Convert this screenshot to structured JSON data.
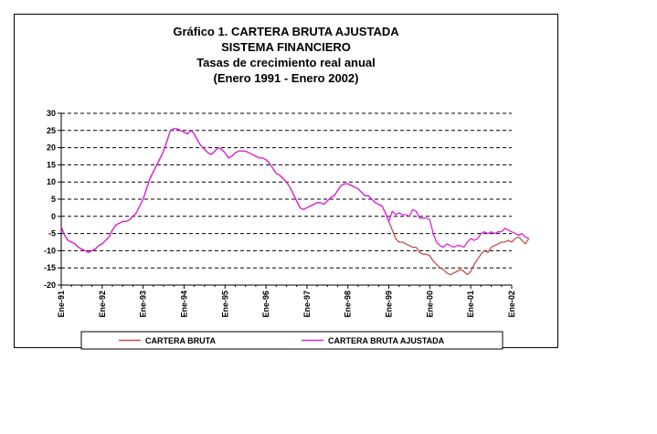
{
  "titles": {
    "line1": "Gráfico 1. CARTERA BRUTA AJUSTADA",
    "line2": "SISTEMA FINANCIERO",
    "line3": "Tasas de crecimiento real anual",
    "line4": "(Enero 1991 - Enero 2002)"
  },
  "colors": {
    "cartera_bruta": "#c0504d",
    "cartera_ajustada": "#e020e0",
    "grid": "#000000"
  },
  "chart_data": {
    "type": "line",
    "title": "Gráfico 1. CARTERA BRUTA AJUSTADA",
    "xlabel": "",
    "ylabel": "",
    "ylim": [
      -20,
      30
    ],
    "yticks": [
      30,
      25,
      20,
      15,
      10,
      5,
      0,
      -5,
      -10,
      -15,
      -20
    ],
    "grid": "horizontal dashed",
    "legend_position": "bottom",
    "x_start": "Ene-91",
    "x_end": "Ene-02",
    "x_ticks": [
      {
        "month": 0,
        "label": "Ene-91"
      },
      {
        "month": 12,
        "label": "Ene-92"
      },
      {
        "month": 24,
        "label": "Ene-93"
      },
      {
        "month": 36,
        "label": "Ene-94"
      },
      {
        "month": 48,
        "label": "Ene-95"
      },
      {
        "month": 60,
        "label": "Ene-96"
      },
      {
        "month": 72,
        "label": "Ene-97"
      },
      {
        "month": 84,
        "label": "Ene-98"
      },
      {
        "month": 96,
        "label": "Ene-99"
      },
      {
        "month": 108,
        "label": "Ene-00"
      },
      {
        "month": 120,
        "label": "Ene-01"
      },
      {
        "month": 132,
        "label": "Ene-02"
      }
    ],
    "series": [
      {
        "name": "CARTERA BRUTA",
        "color": "#c0504d",
        "points": [
          [
            0,
            -3
          ],
          [
            1,
            -5.5
          ],
          [
            2,
            -7
          ],
          [
            3,
            -7.5
          ],
          [
            4,
            -8
          ],
          [
            5,
            -9
          ],
          [
            6,
            -9.5
          ],
          [
            7,
            -10
          ],
          [
            8,
            -10.5
          ],
          [
            9,
            -10
          ],
          [
            10,
            -9.5
          ],
          [
            11,
            -8.5
          ],
          [
            12,
            -8
          ],
          [
            13,
            -7
          ],
          [
            14,
            -6
          ],
          [
            15,
            -4
          ],
          [
            16,
            -2.5
          ],
          [
            17,
            -2
          ],
          [
            18,
            -1.5
          ],
          [
            19,
            -1.5
          ],
          [
            20,
            -1
          ],
          [
            21,
            0
          ],
          [
            22,
            1
          ],
          [
            23,
            3
          ],
          [
            24,
            5
          ],
          [
            25,
            8
          ],
          [
            26,
            11
          ],
          [
            27,
            13
          ],
          [
            28,
            15
          ],
          [
            29,
            17
          ],
          [
            30,
            19
          ],
          [
            31,
            22
          ],
          [
            32,
            25
          ],
          [
            33,
            25.5
          ],
          [
            34,
            25.5
          ],
          [
            35,
            25
          ],
          [
            36,
            24.5
          ],
          [
            37,
            24
          ],
          [
            38,
            25
          ],
          [
            39,
            24
          ],
          [
            40,
            22
          ],
          [
            41,
            20.5
          ],
          [
            42,
            19.5
          ],
          [
            43,
            18.5
          ],
          [
            44,
            18
          ],
          [
            45,
            19
          ],
          [
            46,
            20
          ],
          [
            47,
            19.5
          ],
          [
            48,
            18.5
          ],
          [
            49,
            17
          ],
          [
            50,
            17.5
          ],
          [
            51,
            18.5
          ],
          [
            52,
            19
          ],
          [
            53,
            19
          ],
          [
            54,
            19
          ],
          [
            55,
            18.5
          ],
          [
            56,
            18
          ],
          [
            57,
            17.5
          ],
          [
            58,
            17
          ],
          [
            59,
            17
          ],
          [
            60,
            16.5
          ],
          [
            61,
            15.5
          ],
          [
            62,
            14
          ],
          [
            63,
            12.5
          ],
          [
            64,
            12
          ],
          [
            65,
            11
          ],
          [
            66,
            10
          ],
          [
            67,
            8.5
          ],
          [
            68,
            6.5
          ],
          [
            69,
            4.5
          ],
          [
            70,
            2.5
          ],
          [
            71,
            2
          ],
          [
            72,
            2.5
          ],
          [
            73,
            3
          ],
          [
            74,
            3.5
          ],
          [
            75,
            4
          ],
          [
            76,
            4
          ],
          [
            77,
            3.5
          ],
          [
            78,
            4.5
          ],
          [
            79,
            5.5
          ],
          [
            80,
            6
          ],
          [
            81,
            7.5
          ],
          [
            82,
            9
          ],
          [
            83,
            9.5
          ],
          [
            84,
            9.5
          ],
          [
            85,
            9
          ],
          [
            86,
            8.5
          ],
          [
            87,
            8
          ],
          [
            88,
            7
          ],
          [
            89,
            6
          ],
          [
            90,
            6
          ],
          [
            91,
            5
          ],
          [
            92,
            4
          ],
          [
            93,
            3.5
          ],
          [
            94,
            3
          ],
          [
            95,
            1
          ],
          [
            96,
            -1.5
          ],
          [
            97,
            -4
          ],
          [
            98,
            -6.5
          ],
          [
            99,
            -7.5
          ],
          [
            100,
            -7.5
          ],
          [
            101,
            -8
          ],
          [
            102,
            -8.5
          ],
          [
            103,
            -9
          ],
          [
            104,
            -9
          ],
          [
            105,
            -10.5
          ],
          [
            106,
            -11
          ],
          [
            107,
            -11
          ],
          [
            108,
            -11.5
          ],
          [
            109,
            -13
          ],
          [
            110,
            -14
          ],
          [
            111,
            -15
          ],
          [
            112,
            -15.5
          ],
          [
            113,
            -16.5
          ],
          [
            114,
            -17
          ],
          [
            115,
            -16.5
          ],
          [
            116,
            -16
          ],
          [
            117,
            -15.5
          ],
          [
            118,
            -16
          ],
          [
            119,
            -17
          ],
          [
            120,
            -16
          ],
          [
            121,
            -14
          ],
          [
            122,
            -12.5
          ],
          [
            123,
            -11
          ],
          [
            124,
            -10
          ],
          [
            125,
            -10.5
          ],
          [
            126,
            -9
          ],
          [
            127,
            -8.5
          ],
          [
            128,
            -8
          ],
          [
            129,
            -7.5
          ],
          [
            130,
            -7.5
          ],
          [
            131,
            -7
          ],
          [
            132,
            -7.5
          ],
          [
            133,
            -6.5
          ],
          [
            134,
            -6
          ],
          [
            135,
            -7
          ],
          [
            136,
            -8
          ],
          [
            137,
            -6.5
          ]
        ]
      },
      {
        "name": "CARTERA BRUTA AJUSTADA",
        "color": "#e020e0",
        "points": [
          [
            0,
            -3
          ],
          [
            1,
            -5.5
          ],
          [
            2,
            -7
          ],
          [
            3,
            -7.5
          ],
          [
            4,
            -8
          ],
          [
            5,
            -9
          ],
          [
            6,
            -9.5
          ],
          [
            7,
            -10
          ],
          [
            8,
            -10.5
          ],
          [
            9,
            -10
          ],
          [
            10,
            -9.5
          ],
          [
            11,
            -8.5
          ],
          [
            12,
            -8
          ],
          [
            13,
            -7
          ],
          [
            14,
            -6
          ],
          [
            15,
            -4
          ],
          [
            16,
            -2.5
          ],
          [
            17,
            -2
          ],
          [
            18,
            -1.5
          ],
          [
            19,
            -1.5
          ],
          [
            20,
            -1
          ],
          [
            21,
            0
          ],
          [
            22,
            1
          ],
          [
            23,
            3
          ],
          [
            24,
            5
          ],
          [
            25,
            8
          ],
          [
            26,
            11
          ],
          [
            27,
            13
          ],
          [
            28,
            15
          ],
          [
            29,
            17
          ],
          [
            30,
            19
          ],
          [
            31,
            22
          ],
          [
            32,
            25
          ],
          [
            33,
            25.5
          ],
          [
            34,
            25.5
          ],
          [
            35,
            25
          ],
          [
            36,
            24.5
          ],
          [
            37,
            24
          ],
          [
            38,
            25
          ],
          [
            39,
            24
          ],
          [
            40,
            22
          ],
          [
            41,
            20.5
          ],
          [
            42,
            19.5
          ],
          [
            43,
            18.5
          ],
          [
            44,
            18
          ],
          [
            45,
            19
          ],
          [
            46,
            20
          ],
          [
            47,
            19.5
          ],
          [
            48,
            18.5
          ],
          [
            49,
            17
          ],
          [
            50,
            17.5
          ],
          [
            51,
            18.5
          ],
          [
            52,
            19
          ],
          [
            53,
            19
          ],
          [
            54,
            19
          ],
          [
            55,
            18.5
          ],
          [
            56,
            18
          ],
          [
            57,
            17.5
          ],
          [
            58,
            17
          ],
          [
            59,
            17
          ],
          [
            60,
            16.5
          ],
          [
            61,
            15.5
          ],
          [
            62,
            14
          ],
          [
            63,
            12.5
          ],
          [
            64,
            12
          ],
          [
            65,
            11
          ],
          [
            66,
            10
          ],
          [
            67,
            8.5
          ],
          [
            68,
            6.5
          ],
          [
            69,
            4.5
          ],
          [
            70,
            2.5
          ],
          [
            71,
            2
          ],
          [
            72,
            2.5
          ],
          [
            73,
            3
          ],
          [
            74,
            3.5
          ],
          [
            75,
            4
          ],
          [
            76,
            4
          ],
          [
            77,
            3.5
          ],
          [
            78,
            4.5
          ],
          [
            79,
            5.5
          ],
          [
            80,
            6
          ],
          [
            81,
            7.5
          ],
          [
            82,
            9
          ],
          [
            83,
            9.5
          ],
          [
            84,
            9.5
          ],
          [
            85,
            9
          ],
          [
            86,
            8.5
          ],
          [
            87,
            8
          ],
          [
            88,
            7
          ],
          [
            89,
            6
          ],
          [
            90,
            6
          ],
          [
            91,
            5
          ],
          [
            92,
            4
          ],
          [
            93,
            3.5
          ],
          [
            94,
            3
          ],
          [
            95,
            1
          ],
          [
            96,
            -1.5
          ],
          [
            97,
            1.5
          ],
          [
            98,
            0.5
          ],
          [
            99,
            1
          ],
          [
            100,
            0.5
          ],
          [
            101,
            0.5
          ],
          [
            102,
            0
          ],
          [
            103,
            2
          ],
          [
            104,
            1.5
          ],
          [
            105,
            -0.5
          ],
          [
            106,
            -0.5
          ],
          [
            107,
            -0.5
          ],
          [
            108,
            -1
          ],
          [
            109,
            -5
          ],
          [
            110,
            -7.5
          ],
          [
            111,
            -8.5
          ],
          [
            112,
            -9
          ],
          [
            113,
            -8
          ],
          [
            114,
            -8.5
          ],
          [
            115,
            -9
          ],
          [
            116,
            -8.5
          ],
          [
            117,
            -8.5
          ],
          [
            118,
            -9
          ],
          [
            119,
            -7.5
          ],
          [
            120,
            -6.5
          ],
          [
            121,
            -7
          ],
          [
            122,
            -6.5
          ],
          [
            123,
            -5
          ],
          [
            124,
            -4.5
          ],
          [
            125,
            -5
          ],
          [
            126,
            -4.5
          ],
          [
            127,
            -5
          ],
          [
            128,
            -4.5
          ],
          [
            129,
            -4.5
          ],
          [
            130,
            -3.5
          ],
          [
            131,
            -4
          ],
          [
            132,
            -4.5
          ],
          [
            133,
            -5
          ],
          [
            134,
            -5.5
          ],
          [
            135,
            -5
          ],
          [
            136,
            -6
          ],
          [
            137,
            -6.5
          ]
        ]
      }
    ],
    "legend": [
      "CARTERA BRUTA",
      "CARTERA BRUTA AJUSTADA"
    ]
  }
}
